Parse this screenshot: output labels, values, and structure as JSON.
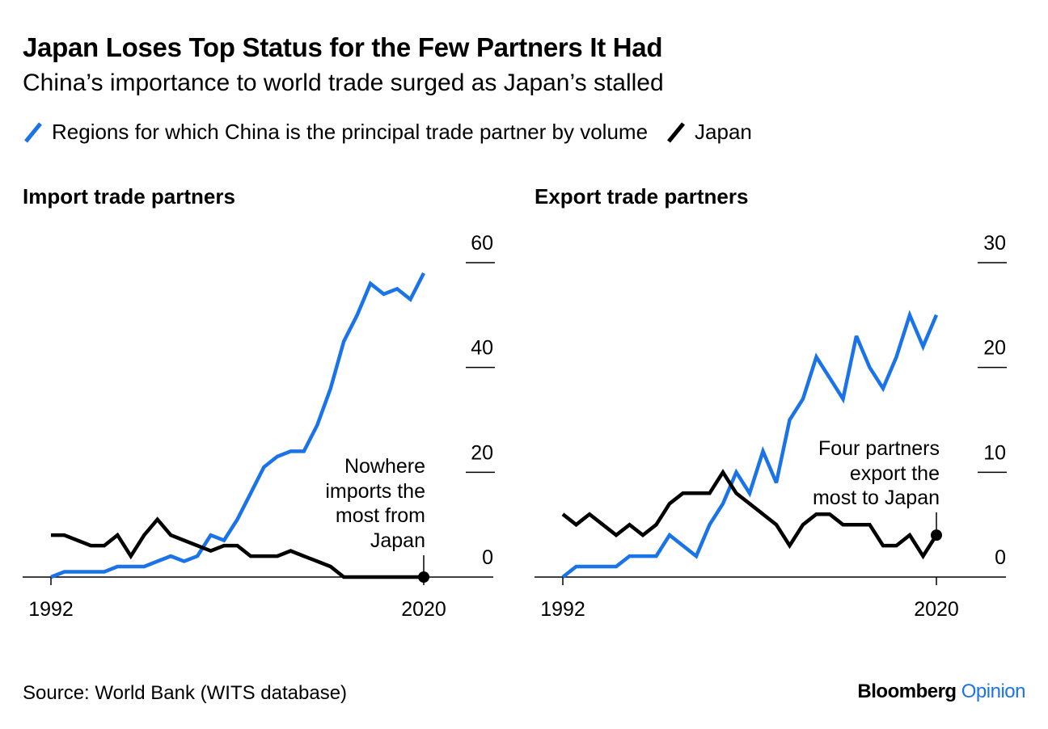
{
  "title": "Japan Loses Top Status for the Few Partners It Had",
  "subtitle": "China’s importance to world trade surged as Japan’s stalled",
  "legend": {
    "china": "Regions for which China is the principal trade partner by volume",
    "japan": "Japan"
  },
  "colors": {
    "china": "#1a73e8",
    "japan": "#000000"
  },
  "source": "Source: World Bank (WITS database)",
  "brand": {
    "name": "Bloomberg",
    "suffix": "Opinion"
  },
  "chart_data": [
    {
      "type": "line",
      "title": "Import trade partners",
      "x_ticks": [
        "1992",
        "2020"
      ],
      "y_ticks": [
        "0",
        "20",
        "40",
        "60"
      ],
      "ylim": [
        0,
        60
      ],
      "x": [
        1992,
        1993,
        1994,
        1995,
        1996,
        1997,
        1998,
        1999,
        2000,
        2001,
        2002,
        2003,
        2004,
        2005,
        2006,
        2007,
        2008,
        2009,
        2010,
        2011,
        2012,
        2013,
        2014,
        2015,
        2016,
        2017,
        2018,
        2019,
        2020
      ],
      "series": [
        {
          "name": "China",
          "values": [
            0,
            1,
            1,
            1,
            1,
            2,
            2,
            2,
            3,
            4,
            3,
            4,
            8,
            7,
            11,
            16,
            21,
            23,
            24,
            24,
            29,
            36,
            45,
            50,
            56,
            54,
            55,
            53,
            58
          ]
        },
        {
          "name": "Japan",
          "values": [
            8,
            8,
            7,
            6,
            6,
            8,
            4,
            8,
            11,
            8,
            7,
            6,
            5,
            6,
            6,
            4,
            4,
            4,
            5,
            4,
            3,
            2,
            0,
            0,
            0,
            0,
            0,
            0,
            0
          ]
        }
      ],
      "annotation": "Nowhere imports the most from Japan",
      "annotation_lines": [
        "Nowhere",
        "imports the",
        "most from",
        "Japan"
      ]
    },
    {
      "type": "line",
      "title": "Export trade partners",
      "x_ticks": [
        "1992",
        "2020"
      ],
      "y_ticks": [
        "0",
        "10",
        "20",
        "30"
      ],
      "ylim": [
        0,
        30
      ],
      "x": [
        1992,
        1993,
        1994,
        1995,
        1996,
        1997,
        1998,
        1999,
        2000,
        2001,
        2002,
        2003,
        2004,
        2005,
        2006,
        2007,
        2008,
        2009,
        2010,
        2011,
        2012,
        2013,
        2014,
        2015,
        2016,
        2017,
        2018,
        2019,
        2020
      ],
      "series": [
        {
          "name": "China",
          "values": [
            0,
            1,
            1,
            1,
            1,
            2,
            2,
            2,
            4,
            3,
            2,
            5,
            7,
            10,
            8,
            12,
            9,
            15,
            17,
            21,
            19,
            17,
            23,
            20,
            18,
            21,
            25,
            22,
            25
          ]
        },
        {
          "name": "Japan",
          "values": [
            6,
            5,
            6,
            5,
            4,
            5,
            4,
            5,
            7,
            8,
            8,
            8,
            10,
            8,
            7,
            6,
            5,
            3,
            5,
            6,
            6,
            5,
            5,
            5,
            3,
            3,
            4,
            2,
            4
          ]
        }
      ],
      "annotation": "Four partners export the most to Japan",
      "annotation_lines": [
        "Four partners",
        "export the",
        "most to Japan"
      ]
    }
  ]
}
